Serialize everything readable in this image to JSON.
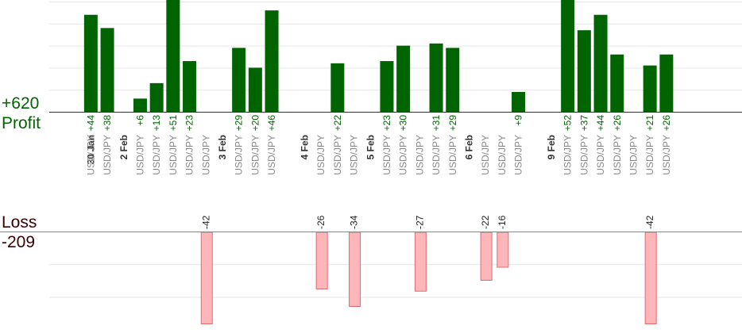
{
  "summary": {
    "profit_total": "+620",
    "profit_label": "Profit",
    "loss_label": "Loss",
    "loss_total": "-209"
  },
  "colors": {
    "profit_bar": "#006400",
    "profit_text": "#006400",
    "loss_bar": "#ffb6b9",
    "loss_border": "#e06a70",
    "loss_text": "#3a0000",
    "date_text": "#333333",
    "pair_text": "#888888"
  },
  "chart_data": {
    "type": "bar",
    "title": "",
    "series": [
      {
        "values": [
          44,
          38,
          null,
          6,
          13,
          51,
          23,
          null,
          null,
          29,
          20,
          46,
          null,
          null,
          null,
          22,
          null,
          null,
          23,
          30,
          null,
          31,
          29,
          null,
          null,
          null,
          9,
          null,
          null,
          52,
          37,
          44,
          26,
          null,
          21,
          26
        ]
      },
      {
        "values": [
          null,
          null,
          null,
          null,
          null,
          null,
          null,
          -42,
          null,
          null,
          null,
          null,
          null,
          null,
          -26,
          null,
          -34,
          null,
          null,
          null,
          -27,
          null,
          null,
          null,
          -22,
          -16,
          null,
          null,
          null,
          null,
          null,
          null,
          null,
          null,
          -42,
          null
        ]
      }
    ],
    "slots": [
      {
        "date": "30 Jan",
        "pair": "USD/JPY"
      },
      {
        "date": "",
        "pair": "USD/JPY"
      },
      {
        "date": "2 Feb",
        "pair": ""
      },
      {
        "date": "",
        "pair": "USD/JPY"
      },
      {
        "date": "",
        "pair": "USD/JPY"
      },
      {
        "date": "",
        "pair": "USD/JPY"
      },
      {
        "date": "",
        "pair": "USD/JPY"
      },
      {
        "date": "",
        "pair": "USD/JPY"
      },
      {
        "date": "3 Feb",
        "pair": ""
      },
      {
        "date": "",
        "pair": "USD/JPY"
      },
      {
        "date": "",
        "pair": "USD/JPY"
      },
      {
        "date": "",
        "pair": "USD/JPY"
      },
      {
        "date": "",
        "pair": ""
      },
      {
        "date": "4 Feb",
        "pair": ""
      },
      {
        "date": "",
        "pair": "USD/JPY"
      },
      {
        "date": "",
        "pair": "USD/JPY"
      },
      {
        "date": "",
        "pair": "USD/JPY"
      },
      {
        "date": "5 Feb",
        "pair": ""
      },
      {
        "date": "",
        "pair": "USD/JPY"
      },
      {
        "date": "",
        "pair": "USD/JPY"
      },
      {
        "date": "",
        "pair": "USD/JPY"
      },
      {
        "date": "",
        "pair": "USD/JPY"
      },
      {
        "date": "",
        "pair": "USD/JPY"
      },
      {
        "date": "6 Feb",
        "pair": ""
      },
      {
        "date": "",
        "pair": "USD/JPY"
      },
      {
        "date": "",
        "pair": "USD/JPY"
      },
      {
        "date": "",
        "pair": "USD/JPY"
      },
      {
        "date": "",
        "pair": ""
      },
      {
        "date": "9 Feb",
        "pair": ""
      },
      {
        "date": "",
        "pair": "USD/JPY"
      },
      {
        "date": "",
        "pair": "USD/JPY"
      },
      {
        "date": "",
        "pair": "USD/JPY"
      },
      {
        "date": "",
        "pair": "USD/JPY"
      },
      {
        "date": "",
        "pair": "USD/JPY"
      },
      {
        "date": "",
        "pair": "USD/JPY"
      },
      {
        "date": "",
        "pair": "USD/JPY"
      }
    ],
    "profit_ylim": [
      0,
      50
    ],
    "loss_ylim": [
      -45,
      0
    ],
    "grid": true,
    "legend": "none"
  }
}
